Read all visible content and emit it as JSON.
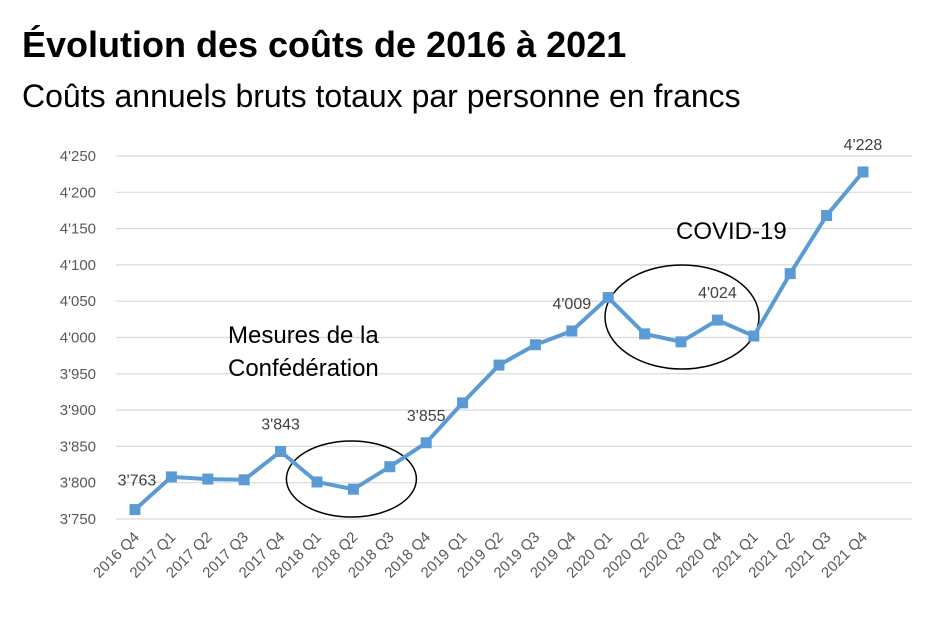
{
  "chart_data": {
    "type": "line",
    "title": "Évolution des coûts de 2016 à 2021",
    "subtitle": "Coûts annuels bruts totaux par personne en francs",
    "xlabel": "",
    "ylabel": "",
    "ylim": [
      3750,
      4250
    ],
    "ytick_values": [
      3750,
      3800,
      3850,
      3900,
      3950,
      4000,
      4050,
      4100,
      4150,
      4200,
      4250
    ],
    "ytick_labels": [
      "3'750",
      "3'800",
      "3'850",
      "3'900",
      "3'950",
      "4'000",
      "4'050",
      "4'100",
      "4'150",
      "4'200",
      "4'250"
    ],
    "grid": true,
    "categories": [
      "2016 Q4",
      "2017 Q1",
      "2017 Q2",
      "2017 Q3",
      "2017 Q4",
      "2018 Q1",
      "2018 Q2",
      "2018 Q3",
      "2018 Q4",
      "2019 Q1",
      "2019 Q2",
      "2019 Q3",
      "2019 Q4",
      "2020 Q1",
      "2020 Q2",
      "2020 Q3",
      "2020 Q4",
      "2021 Q1",
      "2021 Q2",
      "2021 Q3",
      "2021 Q4"
    ],
    "series": [
      {
        "values": [
          3763,
          3808,
          3805,
          3804,
          3843,
          3801,
          3791,
          3822,
          3855,
          3910,
          3962,
          3990,
          4009,
          4055,
          4005,
          3994,
          4024,
          4002,
          4088,
          4168,
          4228
        ],
        "color": "#5b9bd5",
        "marker": "square"
      }
    ],
    "data_labels": [
      {
        "index": 0,
        "text": "3'763"
      },
      {
        "index": 4,
        "text": "3'843"
      },
      {
        "index": 8,
        "text": "3'855"
      },
      {
        "index": 12,
        "text": "4'009"
      },
      {
        "index": 16,
        "text": "4'024"
      },
      {
        "index": 20,
        "text": "4'228"
      }
    ],
    "annotations": [
      {
        "lines": [
          "Mesures de la",
          "Confédération"
        ],
        "circled_from": "2018 Q1",
        "circled_to": "2018 Q3"
      },
      {
        "lines": [
          "COVID-19"
        ],
        "circled_from": "2020 Q1",
        "circled_to": "2021 Q1"
      }
    ]
  }
}
